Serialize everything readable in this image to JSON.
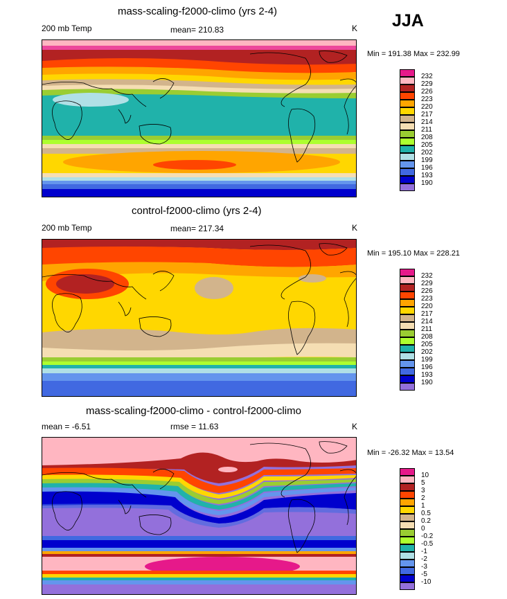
{
  "season": "JJA",
  "panels": [
    {
      "title": "mass-scaling-f2000-climo (yrs 2-4)",
      "left_label": "200 mb Temp",
      "center_label": "mean= 210.83",
      "right_label": "K",
      "minmax": "Min = 191.38 Max = 232.99",
      "fill_colors": {
        "north_high": "#e8307a",
        "north_mid": "#b22222",
        "north_low": "#ff8c00",
        "mid_n": "#f5deb3",
        "tropics": "#20b2aa",
        "mid_s": "#9acd32",
        "south_band": "#ffa500",
        "south_core": "#ff6600",
        "polar_s": "#0000cd"
      }
    },
    {
      "title": "control-f2000-climo (yrs 2-4)",
      "left_label": "200 mb Temp",
      "center_label": "mean= 217.34",
      "right_label": "K",
      "minmax": "Min = 195.10 Max = 228.21",
      "fill_colors": {
        "north_high": "#b22222",
        "north_mid": "#ff4500",
        "north_low": "#ffa500",
        "tropics": "#ffd700",
        "tan": "#d2b48c",
        "mid_s": "#9acd32",
        "polar_s": "#4169e1"
      }
    },
    {
      "title": "mass-scaling-f2000-climo - control-f2000-climo",
      "left_label": "mean =  -6.51",
      "center_label": "rmse =  11.63",
      "right_label": "K",
      "minmax": "Min = -26.32 Max =  13.54",
      "fill_colors": {
        "north": "#ffb6c1",
        "band": "#0000cd",
        "tropics": "#9370db",
        "south_pink": "#ff1493",
        "south": "#ffb6c1"
      }
    }
  ],
  "colorbars": [
    {
      "labels": [
        "232",
        "229",
        "226",
        "223",
        "220",
        "217",
        "214",
        "211",
        "208",
        "205",
        "202",
        "199",
        "196",
        "193",
        "190"
      ],
      "colors": [
        "#e6198a",
        "#ffb6c1",
        "#b22222",
        "#ff4500",
        "#ffa500",
        "#ffd700",
        "#d2b48c",
        "#f5deb3",
        "#9acd32",
        "#adff2f",
        "#20b2aa",
        "#b0e0e6",
        "#6495ed",
        "#4169e1",
        "#0000cd",
        "#9370db"
      ]
    },
    {
      "labels": [
        "232",
        "229",
        "226",
        "223",
        "220",
        "217",
        "214",
        "211",
        "208",
        "205",
        "202",
        "199",
        "196",
        "193",
        "190"
      ],
      "colors": [
        "#e6198a",
        "#ffb6c1",
        "#b22222",
        "#ff4500",
        "#ffa500",
        "#ffd700",
        "#d2b48c",
        "#f5deb3",
        "#9acd32",
        "#adff2f",
        "#20b2aa",
        "#b0e0e6",
        "#6495ed",
        "#4169e1",
        "#0000cd",
        "#9370db"
      ]
    },
    {
      "labels": [
        "10",
        "5",
        "3",
        "2",
        "1",
        "0.5",
        "0.2",
        "0",
        "-0.2",
        "-0.5",
        "-1",
        "-2",
        "-3",
        "-5",
        "-10"
      ],
      "colors": [
        "#e6198a",
        "#ffb6c1",
        "#b22222",
        "#ff4500",
        "#ffa500",
        "#ffd700",
        "#d2b48c",
        "#f5deb3",
        "#9acd32",
        "#adff2f",
        "#20b2aa",
        "#b0e0e6",
        "#6495ed",
        "#4169e1",
        "#0000cd",
        "#9370db"
      ]
    }
  ]
}
